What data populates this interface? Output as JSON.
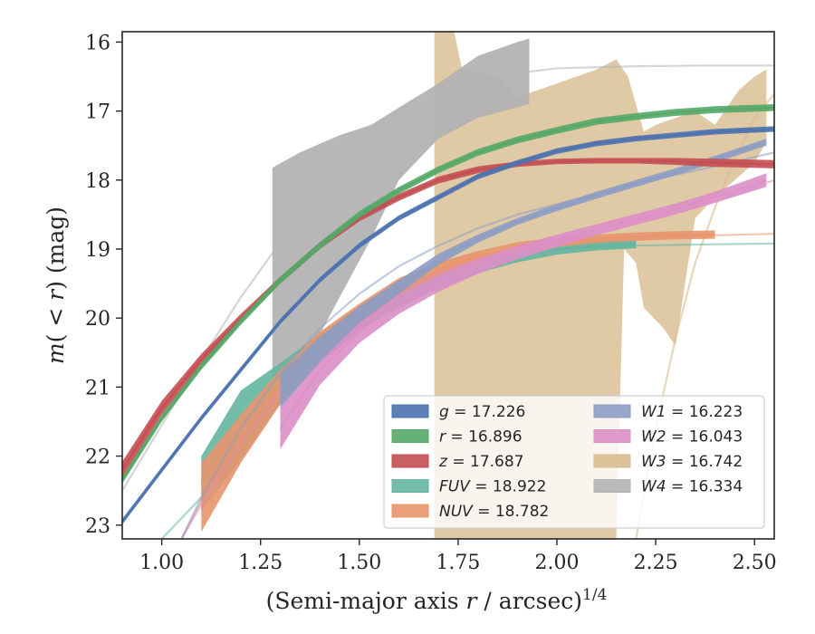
{
  "chart_data": {
    "type": "line",
    "title": "",
    "xlabel": "(Semi-major axis r / arcsec)",
    "xlabel_parts": {
      "lead": "(Semi-major axis ",
      "var": "r",
      "tail": " / arcsec)",
      "exponent": "1/4"
    },
    "ylabel": "m(< r) (mag)",
    "ylabel_parts": {
      "m": "m",
      "open": "(",
      "lt": " < ",
      "var": "r",
      "close": ")",
      "unit": " (mag)"
    },
    "xlim": [
      0.9,
      2.55
    ],
    "ylim": [
      23.2,
      15.85
    ],
    "y_inverted": true,
    "xticks": [
      1.0,
      1.25,
      1.5,
      1.75,
      2.0,
      2.25,
      2.5
    ],
    "xtick_labels": [
      "1.00",
      "1.25",
      "1.50",
      "1.75",
      "2.00",
      "2.25",
      "2.50"
    ],
    "yticks": [
      16,
      17,
      18,
      19,
      20,
      21,
      22,
      23
    ],
    "ytick_labels": [
      "16",
      "17",
      "18",
      "19",
      "20",
      "21",
      "22",
      "23"
    ],
    "grid": false,
    "legend": {
      "placement": "lower-right",
      "columns": 2
    },
    "series": [
      {
        "name": "g = 17.226",
        "band": "g",
        "eq": " = ",
        "mag": "17.226",
        "color": "#4c72b0",
        "x": [
          0.9,
          1.0,
          1.1,
          1.2,
          1.3,
          1.4,
          1.5,
          1.6,
          1.7,
          1.8,
          1.9,
          2.0,
          2.1,
          2.2,
          2.3,
          2.4,
          2.55
        ],
        "y": [
          22.95,
          22.2,
          21.45,
          20.75,
          20.05,
          19.45,
          18.95,
          18.55,
          18.25,
          17.95,
          17.75,
          17.58,
          17.47,
          17.4,
          17.35,
          17.3,
          17.26
        ],
        "band_hw": 0.04
      },
      {
        "name": "r = 16.896",
        "band": "r",
        "eq": " = ",
        "mag": "16.896",
        "color": "#55a868",
        "x": [
          0.9,
          1.0,
          1.1,
          1.2,
          1.3,
          1.4,
          1.5,
          1.6,
          1.7,
          1.8,
          1.9,
          2.0,
          2.1,
          2.2,
          2.3,
          2.4,
          2.55
        ],
        "y": [
          22.35,
          21.45,
          20.7,
          20.05,
          19.45,
          18.95,
          18.5,
          18.15,
          17.85,
          17.6,
          17.42,
          17.28,
          17.15,
          17.08,
          17.02,
          16.98,
          16.95
        ],
        "band_hw": 0.05
      },
      {
        "name": "z = 17.687",
        "band": "z",
        "eq": " = ",
        "mag": "17.687",
        "color": "#c44e52",
        "x": [
          0.9,
          1.0,
          1.1,
          1.2,
          1.3,
          1.4,
          1.5,
          1.6,
          1.7,
          1.8,
          1.9,
          2.0,
          2.1,
          2.2,
          2.3,
          2.4,
          2.55
        ],
        "y": [
          22.2,
          21.3,
          20.6,
          20.0,
          19.45,
          18.95,
          18.55,
          18.25,
          18.0,
          17.85,
          17.77,
          17.73,
          17.72,
          17.72,
          17.73,
          17.75,
          17.77
        ],
        "band_hw": [
          0.12,
          0.1,
          0.08,
          0.06,
          0.05,
          0.05,
          0.05,
          0.05,
          0.05,
          0.05,
          0.04,
          0.04,
          0.04,
          0.04,
          0.05,
          0.06,
          0.06
        ]
      },
      {
        "name": "FUV = 18.922",
        "band": "FUV",
        "eq": " = ",
        "mag": "18.922",
        "color": "#64b5a0",
        "x": [
          1.1,
          1.2,
          1.3,
          1.4,
          1.5,
          1.6,
          1.7,
          1.8,
          1.9,
          2.0,
          2.1,
          2.2
        ],
        "y": [
          22.4,
          21.55,
          20.95,
          20.45,
          20.0,
          19.7,
          19.45,
          19.25,
          19.1,
          19.0,
          18.95,
          18.93
        ],
        "band_hw": [
          0.4,
          0.5,
          0.3,
          0.22,
          0.18,
          0.15,
          0.12,
          0.1,
          0.09,
          0.08,
          0.07,
          0.06
        ],
        "ext_x": [
          1.0,
          1.1,
          1.2,
          1.3,
          1.4,
          1.5,
          1.6,
          1.7,
          1.8,
          1.9,
          2.0,
          2.2,
          2.4,
          2.55
        ],
        "ext_y": [
          23.2,
          22.6,
          21.85,
          21.2,
          20.6,
          20.15,
          19.75,
          19.45,
          19.25,
          19.1,
          19.0,
          18.95,
          18.93,
          18.92
        ]
      },
      {
        "name": "NUV = 18.782",
        "band": "NUV",
        "eq": " = ",
        "mag": "18.782",
        "color": "#e8956d",
        "x": [
          1.1,
          1.2,
          1.3,
          1.4,
          1.5,
          1.6,
          1.7,
          1.8,
          1.9,
          2.0,
          2.1,
          2.2,
          2.3,
          2.4
        ],
        "y": [
          22.6,
          21.75,
          21.0,
          20.4,
          19.95,
          19.55,
          19.3,
          19.12,
          18.98,
          18.9,
          18.85,
          18.82,
          18.8,
          18.79
        ],
        "band_hw": [
          0.5,
          0.35,
          0.25,
          0.2,
          0.16,
          0.13,
          0.11,
          0.09,
          0.08,
          0.07,
          0.06,
          0.06,
          0.06,
          0.06
        ],
        "ext_x": [
          1.05,
          1.1,
          1.2,
          1.3,
          1.4,
          1.5,
          1.6,
          1.7,
          1.8,
          1.9,
          2.0,
          2.2,
          2.4,
          2.55
        ],
        "ext_y": [
          23.2,
          22.65,
          21.8,
          21.05,
          20.45,
          20.0,
          19.6,
          19.33,
          19.15,
          19.02,
          18.92,
          18.84,
          18.8,
          18.78
        ]
      },
      {
        "name": "W1 = 16.223",
        "band": "W1",
        "eq": " = ",
        "mag": "16.223",
        "color": "#8c9cc4",
        "x": [
          1.3,
          1.4,
          1.5,
          1.6,
          1.7,
          1.8,
          1.9,
          2.0,
          2.1,
          2.2,
          2.3,
          2.4,
          2.53
        ],
        "y": [
          21.05,
          20.45,
          19.95,
          19.55,
          19.15,
          18.85,
          18.6,
          18.4,
          18.22,
          18.05,
          17.88,
          17.7,
          17.45
        ],
        "band_hw": [
          0.25,
          0.18,
          0.12,
          0.1,
          0.08,
          0.06,
          0.05,
          0.05,
          0.05,
          0.05,
          0.05,
          0.05,
          0.05
        ],
        "ext_x": [
          1.05,
          1.1,
          1.2,
          1.3,
          1.4,
          1.5,
          1.6,
          1.7,
          1.8,
          1.9,
          2.0,
          2.2,
          2.4,
          2.55
        ],
        "ext_y": [
          23.2,
          22.6,
          21.6,
          20.8,
          20.15,
          19.65,
          19.25,
          18.95,
          18.7,
          18.5,
          18.35,
          18.05,
          17.8,
          17.6
        ]
      },
      {
        "name": "W2 = 16.043",
        "band": "W2",
        "eq": " = ",
        "mag": "16.043",
        "color": "#dc8fc6",
        "x": [
          1.3,
          1.4,
          1.5,
          1.6,
          1.7,
          1.8,
          1.9,
          2.0,
          2.1,
          2.2,
          2.3,
          2.4,
          2.53
        ],
        "y": [
          21.6,
          20.75,
          20.2,
          19.8,
          19.5,
          19.25,
          19.05,
          18.88,
          18.72,
          18.57,
          18.42,
          18.25,
          18.0
        ],
        "band_hw": [
          0.3,
          0.22,
          0.16,
          0.14,
          0.12,
          0.11,
          0.1,
          0.09,
          0.08,
          0.08,
          0.08,
          0.08,
          0.1
        ],
        "ext_x": [
          1.05,
          1.1,
          1.2,
          1.3,
          1.4,
          1.5,
          1.6,
          1.7,
          1.8,
          1.9,
          2.0,
          2.2,
          2.4,
          2.55
        ],
        "ext_y": [
          23.2,
          22.7,
          21.8,
          21.05,
          20.45,
          20.0,
          19.62,
          19.35,
          19.15,
          18.98,
          18.85,
          18.6,
          18.3,
          18.0
        ]
      },
      {
        "name": "W3 = 16.742",
        "band": "W3",
        "eq": " = ",
        "mag": "16.742",
        "color": "#d8bb8f",
        "band_x": [
          1.69,
          1.69,
          1.74,
          1.76,
          1.85,
          1.9,
          1.95,
          2.0,
          2.05,
          2.1,
          2.15,
          2.18,
          2.22,
          2.25,
          2.3,
          2.35,
          2.4,
          2.46,
          2.5,
          2.53,
          2.53,
          2.5,
          2.45,
          2.4,
          2.35,
          2.3,
          2.27,
          2.22,
          2.2,
          2.17,
          2.15,
          2.05,
          1.95,
          1.85,
          1.75,
          1.69
        ],
        "band_y": [
          23.2,
          15.85,
          15.85,
          16.4,
          16.5,
          16.8,
          16.7,
          16.6,
          16.5,
          16.4,
          16.25,
          16.5,
          17.3,
          17.2,
          17.1,
          17.0,
          17.2,
          16.7,
          16.5,
          16.4,
          17.45,
          17.75,
          18.0,
          18.25,
          18.55,
          20.4,
          20.15,
          19.85,
          19.2,
          19.0,
          23.2,
          23.2,
          23.2,
          23.2,
          23.2,
          23.2
        ],
        "line_x": [
          2.2,
          2.25,
          2.3,
          2.35,
          2.4,
          2.45,
          2.5,
          2.55
        ],
        "line_y": [
          23.2,
          21.6,
          20.3,
          19.2,
          18.4,
          17.7,
          17.1,
          16.75
        ]
      },
      {
        "name": "W4 = 16.334",
        "band": "W4",
        "eq": " = ",
        "mag": "16.334",
        "color": "#b3b3b3",
        "band_x": [
          1.28,
          1.35,
          1.45,
          1.53,
          1.6,
          1.7,
          1.8,
          1.9,
          1.93,
          1.93,
          1.8,
          1.7,
          1.6,
          1.53,
          1.45,
          1.38,
          1.33,
          1.28
        ],
        "band_y": [
          17.82,
          17.6,
          17.35,
          17.2,
          16.95,
          16.6,
          16.2,
          16.0,
          15.95,
          16.9,
          17.1,
          17.4,
          18.0,
          18.85,
          19.7,
          20.45,
          21.05,
          21.15
        ],
        "ext_x": [
          0.9,
          1.0,
          1.1,
          1.2,
          1.3,
          1.4,
          1.5,
          1.6,
          1.7,
          1.8,
          1.9,
          2.0,
          2.2,
          2.4,
          2.55
        ],
        "ext_y": [
          22.5,
          21.55,
          20.6,
          19.7,
          18.9,
          18.2,
          17.65,
          17.2,
          16.85,
          16.6,
          16.45,
          16.38,
          16.35,
          16.34,
          16.34
        ]
      }
    ]
  }
}
